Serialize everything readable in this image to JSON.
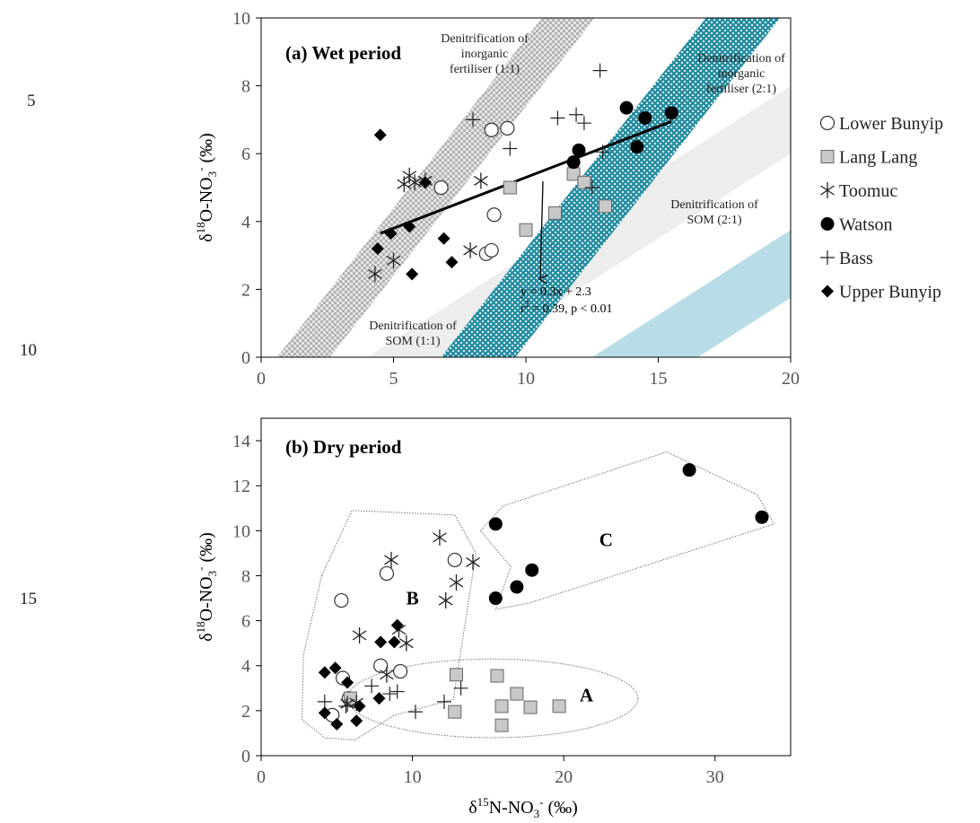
{
  "line_numbers": [
    "5",
    "10",
    "15"
  ],
  "legend": [
    {
      "label": "Lower Bunyip",
      "marker": "circle-open"
    },
    {
      "label": "Lang Lang",
      "marker": "square-grey"
    },
    {
      "label": "Toomuc",
      "marker": "asterisk"
    },
    {
      "label": "Watson",
      "marker": "circle-filled"
    },
    {
      "label": "Bass",
      "marker": "plus"
    },
    {
      "label": "Upper Bunyip",
      "marker": "diamond-filled"
    }
  ],
  "colors": {
    "grey_band": "#c9c9c9",
    "light_band": "#ededed",
    "teal_band": "#2a8fa3",
    "teal_accent": "#d8edf0",
    "blue_band": "#b9dde7",
    "lang_lang_fill": "#c8c8c8"
  },
  "chart_data": [
    {
      "type": "scatter",
      "title": "(a) Wet period",
      "xlabel": "",
      "ylabel": "δ18O-NO3- (‰)",
      "ylabel_parts": {
        "delta": "δ",
        "sup": "18",
        "base": "O-NO",
        "sub": "3",
        "sup2": "-",
        "unit": " (‰)"
      },
      "xlim": [
        0,
        20
      ],
      "ylim": [
        0,
        10
      ],
      "xticks": [
        "0",
        "5",
        "10",
        "15",
        "20"
      ],
      "yticks": [
        "0",
        "2",
        "4",
        "6",
        "8",
        "10"
      ],
      "bands": [
        {
          "label_lines": [
            "Denitrification of",
            "inorganic",
            "fertiliser (1:1)"
          ],
          "x0": 0.6,
          "halfwidth": 1.0,
          "slope": 1.0,
          "fill": "grey_band",
          "pattern": "checker"
        },
        {
          "label_lines": [
            "Denitrification of",
            "inorganic",
            "fertiliser (2:1)"
          ],
          "x0": 4.0,
          "halfwidth": 2.0,
          "slope": 0.5,
          "fill": "light_band",
          "pattern": "none"
        },
        {
          "label_lines": [
            "Denitrification of",
            "SOM (1:1)"
          ],
          "x0": 6.8,
          "halfwidth": 1.4,
          "slope": 1.0,
          "fill": "teal_band",
          "pattern": "checker"
        },
        {
          "label_lines": [
            "Denitrification of",
            "SOM (2:1)"
          ],
          "x0": 12.5,
          "halfwidth": 2.0,
          "slope": 0.5,
          "fill": "blue_band",
          "pattern": "none"
        }
      ],
      "regression": {
        "slope": 0.3,
        "intercept": 2.3,
        "x_range": [
          4.5,
          15.5
        ],
        "equation": "y = 0.3x + 2.3",
        "stats": "r2 = 0.39, p < 0.01",
        "stats_parts": {
          "r": "r",
          "sup": "2",
          "rest": " = 0.39, p < 0.01"
        }
      },
      "series": [
        {
          "name": "Lower Bunyip",
          "marker": "circle-open",
          "points": [
            [
              6.8,
              5.0
            ],
            [
              8.7,
              6.7
            ],
            [
              9.3,
              6.75
            ],
            [
              8.8,
              4.2
            ],
            [
              8.5,
              3.05
            ],
            [
              8.7,
              3.15
            ]
          ]
        },
        {
          "name": "Lang Lang",
          "marker": "square-grey",
          "points": [
            [
              9.4,
              5.0
            ],
            [
              10.0,
              3.75
            ],
            [
              11.1,
              4.25
            ],
            [
              11.8,
              5.4
            ],
            [
              12.2,
              5.15
            ],
            [
              13.0,
              4.45
            ]
          ]
        },
        {
          "name": "Toomuc",
          "marker": "asterisk",
          "points": [
            [
              4.3,
              2.45
            ],
            [
              5.0,
              2.85
            ],
            [
              5.4,
              5.1
            ],
            [
              5.6,
              5.35
            ],
            [
              5.8,
              5.15
            ],
            [
              6.2,
              5.2
            ],
            [
              7.9,
              3.15
            ],
            [
              8.3,
              5.2
            ]
          ]
        },
        {
          "name": "Watson",
          "marker": "circle-filled",
          "points": [
            [
              11.8,
              5.75
            ],
            [
              12.0,
              6.1
            ],
            [
              13.8,
              7.35
            ],
            [
              14.5,
              7.05
            ],
            [
              14.2,
              6.2
            ],
            [
              15.5,
              7.2
            ]
          ]
        },
        {
          "name": "Bass",
          "marker": "plus",
          "points": [
            [
              8.0,
              7.0
            ],
            [
              9.4,
              6.15
            ],
            [
              11.2,
              7.05
            ],
            [
              11.9,
              7.15
            ],
            [
              12.2,
              6.9
            ],
            [
              12.5,
              5.0
            ],
            [
              12.8,
              8.45
            ],
            [
              12.9,
              6.05
            ]
          ]
        },
        {
          "name": "Upper Bunyip",
          "marker": "diamond-filled",
          "points": [
            [
              4.5,
              6.55
            ],
            [
              4.4,
              3.2
            ],
            [
              4.9,
              3.65
            ],
            [
              5.6,
              3.85
            ],
            [
              5.7,
              2.45
            ],
            [
              6.2,
              5.15
            ],
            [
              6.9,
              3.5
            ],
            [
              7.2,
              2.8
            ]
          ]
        }
      ]
    },
    {
      "type": "scatter",
      "title": "(b) Dry period",
      "xlabel": "δ15N-NO3- (‰)",
      "xlabel_parts": {
        "delta": "δ",
        "sup": "15",
        "base": "N-NO",
        "sub": "3",
        "sup2": "-",
        "unit": " (‰)"
      },
      "ylabel": "δ18O-NO3- (‰)",
      "ylabel_parts": {
        "delta": "δ",
        "sup": "18",
        "base": "O-NO",
        "sub": "3",
        "sup2": "-",
        "unit": " (‰)"
      },
      "xlim": [
        0,
        35
      ],
      "ylim": [
        0,
        15
      ],
      "xticks": [
        "0",
        "10",
        "20",
        "30"
      ],
      "yticks": [
        "0",
        "2",
        "4",
        "6",
        "8",
        "10",
        "12",
        "14"
      ],
      "clusters": [
        {
          "label": "A",
          "label_at": [
            21.5,
            2.7
          ],
          "shape": "ellipse",
          "center": [
            15.3,
            2.55
          ],
          "radii": [
            9.6,
            1.75
          ]
        },
        {
          "label": "B",
          "label_at": [
            10.0,
            7.0
          ],
          "shape": "polygon",
          "points": [
            [
              4.0,
              8.0
            ],
            [
              6.0,
              10.9
            ],
            [
              12.8,
              10.7
            ],
            [
              14.2,
              9.0
            ],
            [
              12.7,
              2.5
            ],
            [
              8.8,
              1.8
            ],
            [
              6.2,
              0.7
            ],
            [
              4.2,
              0.8
            ],
            [
              2.7,
              1.6
            ],
            [
              2.8,
              4.5
            ]
          ]
        },
        {
          "label": "C",
          "label_at": [
            22.8,
            9.6
          ],
          "shape": "polygon",
          "points": [
            [
              14.5,
              10.0
            ],
            [
              16.0,
              11.1
            ],
            [
              26.8,
              13.5
            ],
            [
              32.8,
              11.6
            ],
            [
              33.9,
              10.3
            ],
            [
              17.8,
              6.8
            ],
            [
              15.5,
              6.5
            ],
            [
              16.5,
              8.4
            ]
          ]
        }
      ],
      "series": [
        {
          "name": "Lower Bunyip",
          "marker": "circle-open",
          "points": [
            [
              5.3,
              6.9
            ],
            [
              8.3,
              8.1
            ],
            [
              12.8,
              8.7
            ],
            [
              7.9,
              4.0
            ],
            [
              9.2,
              3.75
            ],
            [
              5.4,
              3.45
            ],
            [
              5.8,
              2.55
            ],
            [
              4.7,
              1.8
            ]
          ]
        },
        {
          "name": "Lang Lang",
          "marker": "square-grey",
          "points": [
            [
              5.9,
              2.55
            ],
            [
              12.9,
              3.6
            ],
            [
              12.8,
              1.95
            ],
            [
              15.6,
              3.55
            ],
            [
              15.9,
              2.2
            ],
            [
              15.9,
              1.35
            ],
            [
              16.9,
              2.75
            ],
            [
              17.8,
              2.15
            ],
            [
              19.7,
              2.2
            ]
          ]
        },
        {
          "name": "Toomuc",
          "marker": "asterisk",
          "points": [
            [
              6.5,
              5.35
            ],
            [
              8.6,
              8.7
            ],
            [
              11.8,
              9.7
            ],
            [
              12.9,
              7.7
            ],
            [
              12.2,
              6.9
            ],
            [
              14.0,
              8.6
            ],
            [
              9.6,
              5.0
            ],
            [
              9.1,
              5.6
            ],
            [
              8.3,
              3.6
            ],
            [
              6.3,
              2.35
            ],
            [
              5.7,
              2.3
            ]
          ]
        },
        {
          "name": "Watson",
          "marker": "circle-filled",
          "points": [
            [
              15.5,
              10.3
            ],
            [
              15.5,
              7.0
            ],
            [
              16.9,
              7.5
            ],
            [
              17.9,
              8.25
            ],
            [
              28.3,
              12.7
            ],
            [
              33.1,
              10.6
            ]
          ]
        },
        {
          "name": "Bass",
          "marker": "plus",
          "points": [
            [
              4.2,
              2.4
            ],
            [
              5.6,
              2.2
            ],
            [
              7.3,
              3.1
            ],
            [
              8.5,
              2.75
            ],
            [
              9.0,
              2.85
            ],
            [
              10.2,
              1.95
            ],
            [
              12.1,
              2.4
            ],
            [
              13.2,
              3.0
            ]
          ]
        },
        {
          "name": "Upper Bunyip",
          "marker": "diamond-filled",
          "points": [
            [
              4.2,
              3.7
            ],
            [
              4.9,
              3.9
            ],
            [
              5.7,
              3.25
            ],
            [
              4.2,
              1.9
            ],
            [
              5.0,
              1.4
            ],
            [
              6.3,
              1.55
            ],
            [
              6.5,
              2.2
            ],
            [
              7.8,
              2.55
            ],
            [
              7.9,
              5.05
            ],
            [
              8.8,
              5.05
            ],
            [
              9.0,
              5.8
            ]
          ]
        }
      ]
    }
  ]
}
